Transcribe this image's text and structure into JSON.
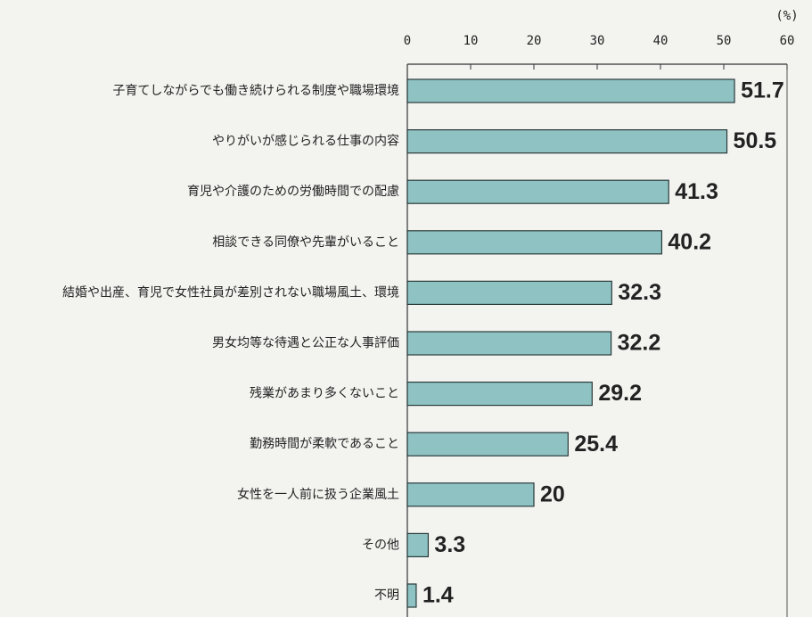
{
  "chart_data": {
    "type": "barh",
    "x_label": "(%)",
    "categories": [
      "子育てしながらでも働き続けられる制度や職場環境",
      "やりがいが感じられる仕事の内容",
      "育児や介護のための労働時間での配慮",
      "相談できる同僚や先輩がいること",
      "結婚や出産、育児で女性社員が差別されない職場風土、環境",
      "男女均等な待遇と公正な人事評価",
      "残業があまり多くないこと",
      "勤務時間が柔軟であること",
      "女性を一人前に扱う企業風土",
      "その他",
      "不明"
    ],
    "values": [
      51.7,
      50.5,
      41.3,
      40.2,
      32.3,
      32.2,
      29.2,
      25.4,
      20,
      3.3,
      1.4
    ],
    "color": "#8fc3c3",
    "xlim": [
      0,
      60
    ],
    "xticks": [
      0,
      10,
      20,
      30,
      40,
      50,
      60
    ]
  }
}
